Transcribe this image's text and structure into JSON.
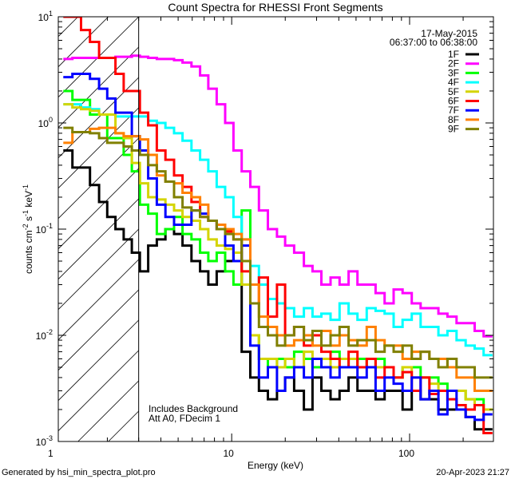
{
  "chart_data": {
    "type": "line",
    "title": "Count Spectra for RHESSI Front Segments",
    "date": "17-May-2015",
    "time_range": "06:37:00 to 06:38:00",
    "xlabel": "Energy (keV)",
    "ylabel": "counts cm-2 s-1 keV-1",
    "ylabel_parts": {
      "a": "counts cm",
      "b": "-2",
      "c": " s",
      "d": "-1",
      "e": " keV",
      "f": "-1"
    },
    "xscale": "log",
    "yscale": "log",
    "xlim": [
      1.06,
      296
    ],
    "ylim": [
      0.001,
      10
    ],
    "x_ticks": [
      {
        "v": 1,
        "label": "1"
      },
      {
        "v": 10,
        "label": "10"
      },
      {
        "v": 100,
        "label": "100"
      }
    ],
    "y_ticks": [
      {
        "v": 10,
        "base": "10",
        "exp": "1"
      },
      {
        "v": 1,
        "base": "10",
        "exp": "0"
      },
      {
        "v": 0.1,
        "base": "10",
        "exp": "-1"
      },
      {
        "v": 0.01,
        "base": "10",
        "exp": "-2"
      },
      {
        "v": 0.001,
        "base": "10",
        "exp": "-3"
      }
    ],
    "hatched_below_keV": 3,
    "annotations": [
      "Includes Background",
      "Att A0, FDecim 1"
    ],
    "legend_position": "top-right",
    "energies": [
      1.2,
      1.35,
      1.5,
      1.7,
      1.9,
      2.1,
      2.35,
      2.6,
      2.9,
      3.2,
      3.6,
      4.0,
      4.5,
      5.0,
      5.6,
      6.3,
      7.0,
      7.8,
      8.7,
      9.7,
      10.8,
      12,
      13.5,
      15,
      17,
      19,
      21,
      24,
      27,
      30,
      34,
      38,
      43,
      48,
      54,
      61,
      68,
      77,
      86,
      97,
      109,
      122,
      137,
      154,
      173,
      195,
      219,
      246,
      276
    ],
    "series": [
      {
        "name": "1F",
        "color": "#000000",
        "values": [
          0.55,
          0.38,
          0.38,
          0.26,
          0.18,
          0.13,
          0.1,
          0.08,
          0.06,
          0.04,
          0.07,
          0.08,
          0.1,
          0.09,
          0.07,
          0.05,
          0.04,
          0.03,
          0.04,
          0.05,
          0.06,
          0.007,
          0.004,
          0.003,
          0.0025,
          0.003,
          0.004,
          0.003,
          0.002,
          0.004,
          0.003,
          0.0025,
          0.003,
          0.004,
          0.003,
          0.003,
          0.0025,
          0.003,
          0.003,
          0.002,
          0.003,
          0.0025,
          0.0025,
          0.002,
          0.002,
          0.002,
          0.0017,
          0.0013,
          0.0013
        ]
      },
      {
        "name": "2F",
        "color": "#ff00ff",
        "values": [
          4,
          4.1,
          4.1,
          4.1,
          4.1,
          4.1,
          4.2,
          4.2,
          4.3,
          4.2,
          4.1,
          4.0,
          4.0,
          3.9,
          3.7,
          3.4,
          2.8,
          2.1,
          1.5,
          1.0,
          0.55,
          0.35,
          0.25,
          0.15,
          0.1,
          0.085,
          0.07,
          0.06,
          0.045,
          0.04,
          0.03,
          0.035,
          0.03,
          0.04,
          0.03,
          0.03,
          0.025,
          0.02,
          0.027,
          0.025,
          0.02,
          0.018,
          0.018,
          0.016,
          0.015,
          0.013,
          0.013,
          0.011,
          0.0098
        ]
      },
      {
        "name": "3F",
        "color": "#00ff00",
        "values": [
          2.0,
          1.65,
          1.65,
          1.2,
          1.2,
          0.72,
          0.72,
          0.5,
          0.35,
          0.17,
          0.14,
          0.09,
          0.1,
          0.13,
          0.09,
          0.08,
          0.06,
          0.05,
          0.06,
          0.04,
          0.03,
          0.15,
          0.01,
          0.006,
          0.005,
          0.006,
          0.005,
          0.007,
          0.006,
          0.005,
          0.006,
          0.007,
          0.006,
          0.005,
          0.006,
          0.005,
          0.006,
          0.005,
          0.004,
          0.005,
          0.005,
          0.004,
          0.004,
          0.0035,
          0.003,
          0.003,
          0.0025,
          0.0025,
          0.002
        ]
      },
      {
        "name": "4F",
        "color": "#00ffff",
        "values": [
          1.5,
          1.5,
          1.4,
          1.35,
          1.2,
          1.2,
          1.15,
          1.15,
          1.15,
          1.15,
          1.05,
          1.0,
          0.9,
          0.8,
          0.68,
          0.55,
          0.45,
          0.35,
          0.25,
          0.2,
          0.13,
          0.08,
          0.045,
          0.03,
          0.022,
          0.02,
          0.018,
          0.015,
          0.018,
          0.015,
          0.016,
          0.014,
          0.02,
          0.016,
          0.014,
          0.018,
          0.017,
          0.016,
          0.012,
          0.014,
          0.016,
          0.012,
          0.012,
          0.01,
          0.011,
          0.009,
          0.008,
          0.0075,
          0.0065
        ]
      },
      {
        "name": "5F",
        "color": "#d4d400",
        "values": [
          1.5,
          1.4,
          1.35,
          1.3,
          1.2,
          1.2,
          0.8,
          0.72,
          0.42,
          0.27,
          0.2,
          0.19,
          0.17,
          0.15,
          0.13,
          0.12,
          0.1,
          0.08,
          0.07,
          0.065,
          0.06,
          0.03,
          0.01,
          0.006,
          0.006,
          0.005,
          0.006,
          0.005,
          0.007,
          0.006,
          0.006,
          0.005,
          0.006,
          0.006,
          0.005,
          0.006,
          0.005,
          0.005,
          0.004,
          0.005,
          0.004,
          0.004,
          0.0035,
          0.003,
          0.003,
          0.003,
          0.0025,
          0.0022,
          0.002
        ]
      },
      {
        "name": "6F",
        "color": "#ff0000",
        "values": [
          10,
          10,
          7.5,
          5.8,
          4.1,
          4.1,
          2.9,
          2.0,
          2.0,
          1.25,
          0.95,
          0.55,
          0.45,
          0.32,
          0.25,
          0.18,
          0.13,
          0.12,
          0.1,
          0.095,
          0.08,
          0.04,
          0.02,
          0.035,
          0.015,
          0.03,
          0.01,
          0.012,
          0.008,
          0.01,
          0.007,
          0.006,
          0.005,
          0.007,
          0.005,
          0.006,
          0.004,
          0.005,
          0.004,
          0.0045,
          0.003,
          0.004,
          0.0028,
          0.003,
          0.0025,
          0.0022,
          0.002,
          0.0022,
          0.0012
        ]
      },
      {
        "name": "7F",
        "color": "#0000ff",
        "values": [
          2.7,
          2.9,
          2.9,
          2.6,
          2.1,
          1.7,
          1.25,
          1.25,
          0.75,
          0.55,
          0.3,
          0.17,
          0.13,
          0.11,
          0.11,
          0.15,
          0.14,
          0.12,
          0.1,
          0.07,
          0.05,
          0.07,
          0.008,
          0.004,
          0.005,
          0.003,
          0.004,
          0.005,
          0.004,
          0.006,
          0.005,
          0.004,
          0.005,
          0.005,
          0.004,
          0.005,
          0.003,
          0.004,
          0.0035,
          0.003,
          0.004,
          0.0025,
          0.003,
          0.0018,
          0.003,
          0.002,
          0.0017,
          0.0016,
          0.0018
        ]
      },
      {
        "name": "8F",
        "color": "#ff8000",
        "values": [
          0.65,
          0.82,
          0.82,
          0.88,
          0.9,
          0.9,
          0.8,
          0.75,
          0.75,
          0.7,
          0.5,
          0.32,
          0.28,
          0.27,
          0.22,
          0.2,
          0.17,
          0.12,
          0.11,
          0.1,
          0.09,
          0.08,
          0.03,
          0.015,
          0.012,
          0.01,
          0.008,
          0.009,
          0.01,
          0.008,
          0.011,
          0.008,
          0.01,
          0.009,
          0.008,
          0.012,
          0.009,
          0.008,
          0.008,
          0.006,
          0.007,
          0.007,
          0.006,
          0.006,
          0.005,
          0.004,
          0.004,
          0.003,
          0.003
        ]
      },
      {
        "name": "9F",
        "color": "#808000",
        "values": [
          0.9,
          0.82,
          0.82,
          0.8,
          0.72,
          0.65,
          0.65,
          0.6,
          0.55,
          0.5,
          0.4,
          0.35,
          0.28,
          0.2,
          0.16,
          0.15,
          0.13,
          0.12,
          0.1,
          0.09,
          0.08,
          0.05,
          0.02,
          0.012,
          0.01,
          0.008,
          0.01,
          0.012,
          0.009,
          0.011,
          0.008,
          0.01,
          0.012,
          0.008,
          0.009,
          0.009,
          0.007,
          0.008,
          0.007,
          0.008,
          0.006,
          0.007,
          0.006,
          0.005,
          0.006,
          0.005,
          0.005,
          0.004,
          0.004
        ]
      }
    ]
  },
  "footer": {
    "generated_by": "Generated by hsi_min_spectra_plot.pro",
    "timestamp": "20-Apr-2023 21:27"
  }
}
